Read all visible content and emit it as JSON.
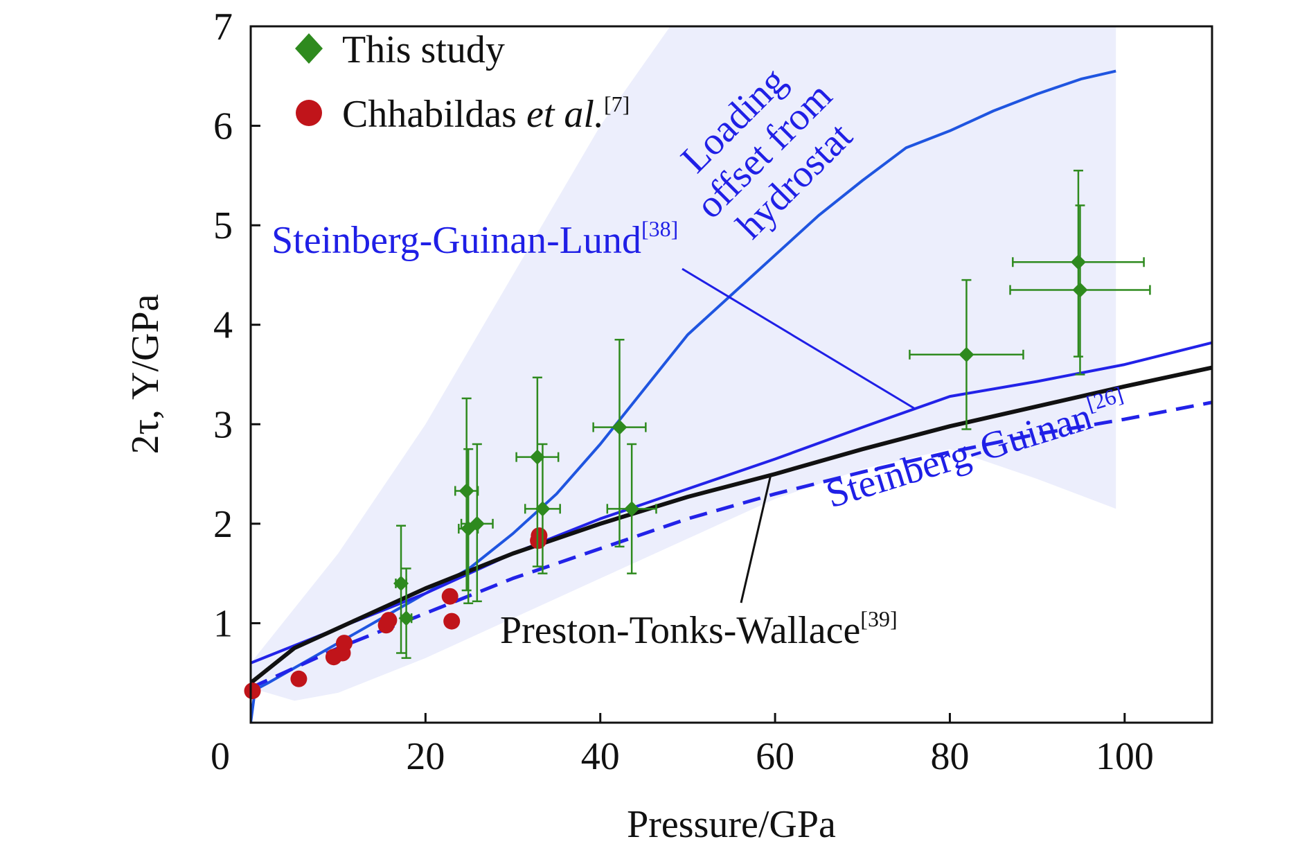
{
  "chart_data": {
    "type": "scatter",
    "xlabel": "Pressure/GPa",
    "ylabel": "2τ, Y/GPa",
    "xlim": [
      0,
      110
    ],
    "ylim": [
      0,
      7
    ],
    "x_ticks": [
      "0",
      "20",
      "40",
      "60",
      "80",
      "100"
    ],
    "y_ticks": [
      "1",
      "2",
      "3",
      "4",
      "5",
      "6",
      "7"
    ],
    "grid": false,
    "legend_position": "top-left",
    "legend": [
      {
        "label": "This study",
        "ref_label": "",
        "marker": "diamond",
        "color": "#2e8a1e"
      },
      {
        "label": "Chhabildas ",
        "label_italic": "et al.",
        "ref_label": "[7]",
        "marker": "circle",
        "color": "#c0141a"
      }
    ],
    "series": [
      {
        "name": "This study",
        "kind": "points_with_error_bars",
        "color": "#2e8a1e",
        "points": [
          {
            "x": 17.2,
            "y": 1.4,
            "xerr": 0.6,
            "yerr_low": 0.7,
            "yerr_high": 0.58
          },
          {
            "x": 17.8,
            "y": 1.05,
            "xerr": 0.6,
            "yerr_low": 0.4,
            "yerr_high": 0.5
          },
          {
            "x": 24.7,
            "y": 2.33,
            "xerr": 1.3,
            "yerr_low": 1.0,
            "yerr_high": 0.93
          },
          {
            "x": 24.9,
            "y": 1.95,
            "xerr": 1.1,
            "yerr_low": 0.75,
            "yerr_high": 0.8
          },
          {
            "x": 25.9,
            "y": 2.0,
            "xerr": 1.8,
            "yerr_low": 0.78,
            "yerr_high": 0.8
          },
          {
            "x": 32.8,
            "y": 2.67,
            "xerr": 2.4,
            "yerr_low": 1.1,
            "yerr_high": 0.8
          },
          {
            "x": 33.4,
            "y": 2.15,
            "xerr": 2.0,
            "yerr_low": 0.65,
            "yerr_high": 0.65
          },
          {
            "x": 42.2,
            "y": 2.97,
            "xerr": 3.0,
            "yerr_low": 1.2,
            "yerr_high": 0.88
          },
          {
            "x": 43.6,
            "y": 2.15,
            "xerr": 2.8,
            "yerr_low": 0.65,
            "yerr_high": 0.65
          },
          {
            "x": 81.9,
            "y": 3.7,
            "xerr": 6.5,
            "yerr_low": 0.75,
            "yerr_high": 0.75
          },
          {
            "x": 94.7,
            "y": 4.63,
            "xerr": 7.5,
            "yerr_low": 0.95,
            "yerr_high": 0.92
          },
          {
            "x": 94.9,
            "y": 4.35,
            "xerr": 8.0,
            "yerr_low": 0.85,
            "yerr_high": 0.85
          }
        ]
      },
      {
        "name": "Chhabildas et al.",
        "kind": "points",
        "color": "#c0141a",
        "points": [
          {
            "x": 0.2,
            "y": 0.32
          },
          {
            "x": 5.5,
            "y": 0.44
          },
          {
            "x": 9.5,
            "y": 0.66
          },
          {
            "x": 10.5,
            "y": 0.7
          },
          {
            "x": 10.7,
            "y": 0.8
          },
          {
            "x": 15.5,
            "y": 0.98
          },
          {
            "x": 15.8,
            "y": 1.03
          },
          {
            "x": 23.0,
            "y": 1.02
          },
          {
            "x": 22.8,
            "y": 1.27
          },
          {
            "x": 32.9,
            "y": 1.83
          },
          {
            "x": 33.0,
            "y": 1.88
          }
        ]
      },
      {
        "name": "Loading offset from hydrostat",
        "kind": "line",
        "color": "#1f55e0",
        "x": [
          0,
          0.5,
          2,
          5,
          10,
          15,
          20,
          25,
          30,
          35,
          40,
          45,
          50,
          55,
          60,
          65,
          70,
          75,
          80,
          85,
          90,
          95,
          99
        ],
        "y": [
          0.0,
          0.33,
          0.4,
          0.55,
          0.8,
          1.05,
          1.3,
          1.55,
          1.9,
          2.3,
          2.8,
          3.35,
          3.9,
          4.3,
          4.7,
          5.1,
          5.45,
          5.78,
          5.95,
          6.15,
          6.32,
          6.47,
          6.55
        ]
      },
      {
        "name": "Steinberg-Guinan-Lund",
        "kind": "line",
        "color": "#2222e8",
        "x": [
          0,
          10,
          20,
          30,
          40,
          50,
          60,
          70,
          80,
          90,
          100,
          110
        ],
        "y": [
          0.6,
          0.95,
          1.3,
          1.7,
          2.05,
          2.35,
          2.65,
          2.97,
          3.28,
          3.43,
          3.6,
          3.82
        ]
      },
      {
        "name": "Preston-Tonks-Wallace",
        "kind": "line",
        "color": "#111111",
        "x": [
          0,
          5,
          10,
          20,
          30,
          40,
          50,
          60,
          70,
          80,
          90,
          100,
          110
        ],
        "y": [
          0.4,
          0.75,
          0.95,
          1.35,
          1.7,
          2.0,
          2.27,
          2.5,
          2.75,
          2.98,
          3.18,
          3.38,
          3.57
        ]
      },
      {
        "name": "Steinberg-Guinan",
        "kind": "dashed_line",
        "color": "#2222e8",
        "x": [
          0,
          5,
          10,
          20,
          30,
          40,
          50,
          60,
          70,
          80,
          90,
          100,
          110
        ],
        "y": [
          0.35,
          0.55,
          0.75,
          1.1,
          1.45,
          1.75,
          2.05,
          2.3,
          2.52,
          2.72,
          2.9,
          3.05,
          3.22
        ]
      }
    ],
    "shaded_band": {
      "color": "#eceefc",
      "upper": [
        [
          0,
          0.6
        ],
        [
          10,
          1.7
        ],
        [
          20,
          3.0
        ],
        [
          30,
          4.5
        ],
        [
          40,
          6.0
        ],
        [
          48,
          7.0
        ],
        [
          99,
          7.0
        ]
      ],
      "lower": [
        [
          99,
          2.15
        ],
        [
          90,
          2.45
        ],
        [
          80,
          2.75
        ],
        [
          70,
          2.55
        ],
        [
          60,
          2.25
        ],
        [
          50,
          1.85
        ],
        [
          40,
          1.45
        ],
        [
          30,
          1.05
        ],
        [
          20,
          0.65
        ],
        [
          10,
          0.3
        ],
        [
          5,
          0.22
        ],
        [
          0,
          0.35
        ]
      ]
    },
    "annotations": [
      {
        "id": "sgl",
        "text": "Steinberg-Guinan-Lund",
        "ref": "[38]",
        "color": "#1f1fe6"
      },
      {
        "id": "sg",
        "text": "Steinberg-Guinan",
        "ref": "[26]",
        "color": "#1f1fe6"
      },
      {
        "id": "ptw",
        "text": "Preston-Tonks-Wallace",
        "ref": "[39]",
        "color": "#111111"
      },
      {
        "id": "loading",
        "lines": [
          "Loading",
          "offset from",
          "hydrostat"
        ],
        "color": "#1f55e0"
      }
    ]
  }
}
